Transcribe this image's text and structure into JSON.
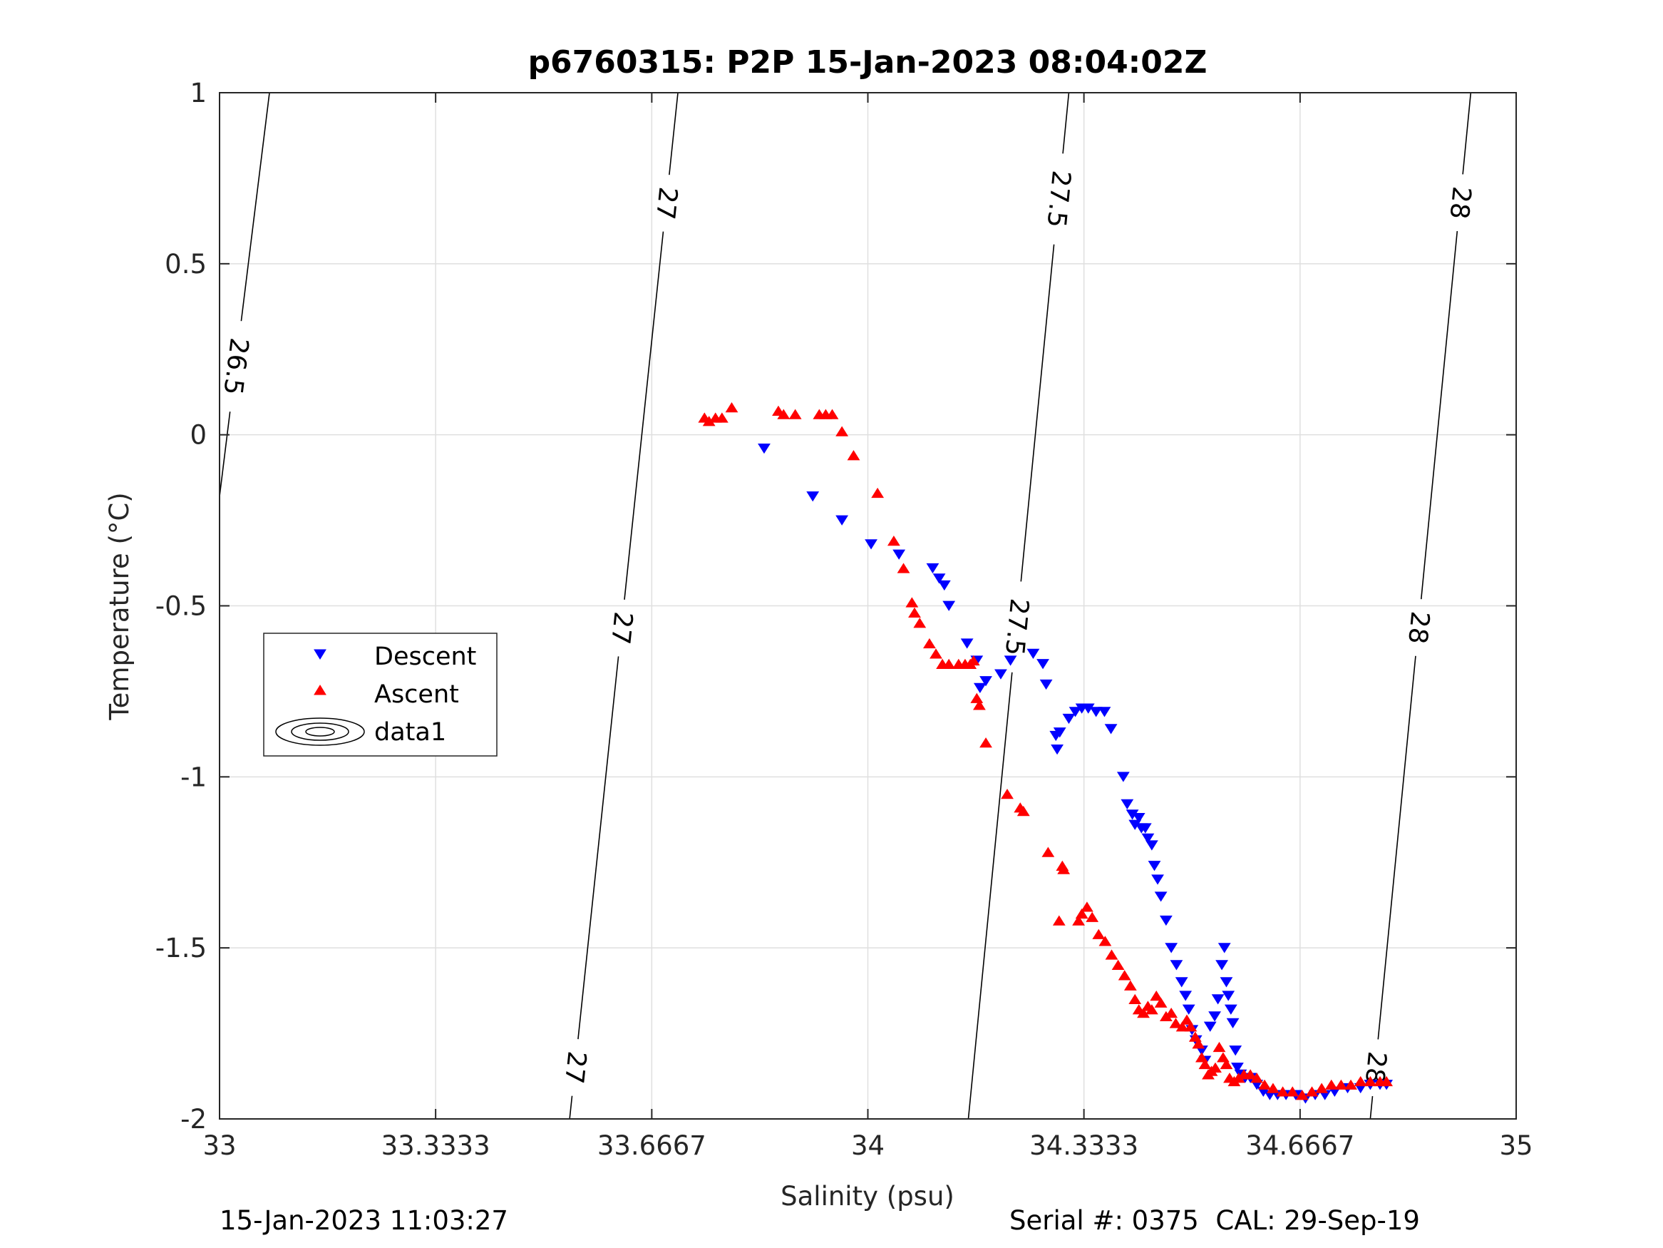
{
  "chart_data": {
    "type": "scatter",
    "title": "p6760315: P2P 15-Jan-2023 08:04:02Z",
    "xlabel": "Salinity (psu)",
    "ylabel": "Temperature (°C)",
    "xlim": [
      33,
      35
    ],
    "ylim": [
      -2,
      1
    ],
    "x_ticks": [
      33,
      33.3333,
      33.6667,
      34,
      34.3333,
      34.6667,
      35
    ],
    "x_tick_labels": [
      "33",
      "33.3333",
      "33.6667",
      "34",
      "34.3333",
      "34.6667",
      "35"
    ],
    "y_ticks": [
      -2,
      -1.5,
      -1,
      -0.5,
      0,
      0.5,
      1
    ],
    "y_tick_labels": [
      "-2",
      "-1.5",
      "-1",
      "-0.5",
      "0",
      "0.5",
      "1"
    ],
    "grid": true,
    "legend_position": "left",
    "legend": [
      "Descent",
      "Ascent",
      "data1"
    ],
    "series": [
      {
        "name": "Descent",
        "marker": "triangle-down",
        "color": "#0000ff",
        "points": [
          [
            33.84,
            -0.04
          ],
          [
            33.915,
            -0.18
          ],
          [
            33.96,
            -0.25
          ],
          [
            34.005,
            -0.32
          ],
          [
            34.048,
            -0.35
          ],
          [
            34.1,
            -0.39
          ],
          [
            34.11,
            -0.42
          ],
          [
            34.118,
            -0.44
          ],
          [
            34.125,
            -0.5
          ],
          [
            34.153,
            -0.61
          ],
          [
            34.168,
            -0.66
          ],
          [
            34.173,
            -0.74
          ],
          [
            34.182,
            -0.72
          ],
          [
            34.205,
            -0.7
          ],
          [
            34.22,
            -0.66
          ],
          [
            34.255,
            -0.64
          ],
          [
            34.27,
            -0.67
          ],
          [
            34.275,
            -0.73
          ],
          [
            34.29,
            -0.88
          ],
          [
            34.292,
            -0.92
          ],
          [
            34.296,
            -0.87
          ],
          [
            34.31,
            -0.83
          ],
          [
            34.32,
            -0.81
          ],
          [
            34.33,
            -0.8
          ],
          [
            34.34,
            -0.8
          ],
          [
            34.352,
            -0.81
          ],
          [
            34.365,
            -0.81
          ],
          [
            34.375,
            -0.86
          ],
          [
            34.394,
            -1.0
          ],
          [
            34.4,
            -1.08
          ],
          [
            34.408,
            -1.11
          ],
          [
            34.412,
            -1.14
          ],
          [
            34.418,
            -1.12
          ],
          [
            34.422,
            -1.15
          ],
          [
            34.428,
            -1.15
          ],
          [
            34.432,
            -1.18
          ],
          [
            34.438,
            -1.2
          ],
          [
            34.442,
            -1.26
          ],
          [
            34.447,
            -1.3
          ],
          [
            34.452,
            -1.35
          ],
          [
            34.46,
            -1.42
          ],
          [
            34.468,
            -1.5
          ],
          [
            34.476,
            -1.55
          ],
          [
            34.484,
            -1.6
          ],
          [
            34.49,
            -1.64
          ],
          [
            34.495,
            -1.68
          ],
          [
            34.5,
            -1.74
          ],
          [
            34.506,
            -1.77
          ],
          [
            34.515,
            -1.8
          ],
          [
            34.52,
            -1.83
          ],
          [
            34.528,
            -1.73
          ],
          [
            34.535,
            -1.7
          ],
          [
            34.54,
            -1.65
          ],
          [
            34.546,
            -1.55
          ],
          [
            34.55,
            -1.5
          ],
          [
            34.553,
            -1.6
          ],
          [
            34.556,
            -1.64
          ],
          [
            34.56,
            -1.68
          ],
          [
            34.563,
            -1.72
          ],
          [
            34.567,
            -1.8
          ],
          [
            34.57,
            -1.85
          ],
          [
            34.575,
            -1.87
          ],
          [
            34.582,
            -1.88
          ],
          [
            34.59,
            -1.88
          ],
          [
            34.6,
            -1.9
          ],
          [
            34.61,
            -1.92
          ],
          [
            34.62,
            -1.93
          ],
          [
            34.632,
            -1.93
          ],
          [
            34.645,
            -1.93
          ],
          [
            34.66,
            -1.93
          ],
          [
            34.675,
            -1.94
          ],
          [
            34.69,
            -1.93
          ],
          [
            34.705,
            -1.93
          ],
          [
            34.72,
            -1.92
          ],
          [
            34.74,
            -1.91
          ],
          [
            34.76,
            -1.91
          ],
          [
            34.775,
            -1.9
          ],
          [
            34.79,
            -1.9
          ],
          [
            34.8,
            -1.9
          ]
        ]
      },
      {
        "name": "Ascent",
        "marker": "triangle-up",
        "color": "#ff0000",
        "points": [
          [
            33.748,
            0.05
          ],
          [
            33.755,
            0.04
          ],
          [
            33.765,
            0.05
          ],
          [
            33.775,
            0.05
          ],
          [
            33.79,
            0.08
          ],
          [
            33.862,
            0.07
          ],
          [
            33.87,
            0.06
          ],
          [
            33.888,
            0.06
          ],
          [
            33.925,
            0.06
          ],
          [
            33.935,
            0.06
          ],
          [
            33.945,
            0.06
          ],
          [
            33.96,
            0.01
          ],
          [
            33.978,
            -0.06
          ],
          [
            34.015,
            -0.17
          ],
          [
            34.04,
            -0.31
          ],
          [
            34.055,
            -0.39
          ],
          [
            34.068,
            -0.49
          ],
          [
            34.072,
            -0.52
          ],
          [
            34.08,
            -0.55
          ],
          [
            34.095,
            -0.61
          ],
          [
            34.105,
            -0.64
          ],
          [
            34.115,
            -0.67
          ],
          [
            34.125,
            -0.67
          ],
          [
            34.14,
            -0.67
          ],
          [
            34.15,
            -0.67
          ],
          [
            34.158,
            -0.67
          ],
          [
            34.163,
            -0.66
          ],
          [
            34.168,
            -0.77
          ],
          [
            34.172,
            -0.79
          ],
          [
            34.182,
            -0.9
          ],
          [
            34.215,
            -1.05
          ],
          [
            34.235,
            -1.09
          ],
          [
            34.24,
            -1.1
          ],
          [
            34.278,
            -1.22
          ],
          [
            34.3,
            -1.26
          ],
          [
            34.302,
            -1.27
          ],
          [
            34.295,
            -1.42
          ],
          [
            34.325,
            -1.42
          ],
          [
            34.33,
            -1.4
          ],
          [
            34.338,
            -1.38
          ],
          [
            34.346,
            -1.41
          ],
          [
            34.356,
            -1.46
          ],
          [
            34.366,
            -1.48
          ],
          [
            34.376,
            -1.52
          ],
          [
            34.386,
            -1.55
          ],
          [
            34.396,
            -1.58
          ],
          [
            34.405,
            -1.61
          ],
          [
            34.412,
            -1.65
          ],
          [
            34.418,
            -1.68
          ],
          [
            34.425,
            -1.69
          ],
          [
            34.432,
            -1.67
          ],
          [
            34.438,
            -1.68
          ],
          [
            34.445,
            -1.64
          ],
          [
            34.452,
            -1.66
          ],
          [
            34.46,
            -1.7
          ],
          [
            34.468,
            -1.69
          ],
          [
            34.475,
            -1.72
          ],
          [
            34.485,
            -1.73
          ],
          [
            34.492,
            -1.71
          ],
          [
            34.498,
            -1.73
          ],
          [
            34.505,
            -1.76
          ],
          [
            34.51,
            -1.78
          ],
          [
            34.515,
            -1.82
          ],
          [
            34.52,
            -1.84
          ],
          [
            34.525,
            -1.87
          ],
          [
            34.53,
            -1.86
          ],
          [
            34.536,
            -1.85
          ],
          [
            34.542,
            -1.79
          ],
          [
            34.548,
            -1.82
          ],
          [
            34.553,
            -1.84
          ],
          [
            34.558,
            -1.88
          ],
          [
            34.565,
            -1.89
          ],
          [
            34.572,
            -1.88
          ],
          [
            34.58,
            -1.87
          ],
          [
            34.59,
            -1.87
          ],
          [
            34.6,
            -1.88
          ],
          [
            34.612,
            -1.9
          ],
          [
            34.625,
            -1.91
          ],
          [
            34.64,
            -1.92
          ],
          [
            34.655,
            -1.92
          ],
          [
            34.67,
            -1.93
          ],
          [
            34.685,
            -1.92
          ],
          [
            34.7,
            -1.91
          ],
          [
            34.715,
            -1.9
          ],
          [
            34.73,
            -1.9
          ],
          [
            34.745,
            -1.9
          ],
          [
            34.76,
            -1.89
          ],
          [
            34.775,
            -1.89
          ],
          [
            34.79,
            -1.89
          ],
          [
            34.8,
            -1.89
          ]
        ]
      }
    ],
    "contours": [
      {
        "level": "26.5",
        "line": [
          [
            33.0,
            -0.18
          ],
          [
            33.077,
            1.0
          ]
        ],
        "label_pos": [
          33.025,
          0.2
        ]
      },
      {
        "level": "27",
        "line": [
          [
            33.54,
            -2.0
          ],
          [
            33.707,
            1.0
          ]
        ],
        "label_pos": [
          33.55,
          -1.85
        ],
        "label_pos2": [
          33.595,
          -0.56
        ],
        "label_pos3": [
          33.674,
          0.68
        ]
      },
      {
        "level": "27.5",
        "line": [
          [
            34.155,
            -2.0
          ],
          [
            34.31,
            1.0
          ]
        ],
        "label_pos": [
          34.22,
          -0.56
        ],
        "label_pos3": [
          34.29,
          0.69
        ]
      },
      {
        "level": "28",
        "line": [
          [
            34.775,
            -2.0
          ],
          [
            34.93,
            1.0
          ]
        ],
        "label_pos": [
          34.78,
          -1.85
        ],
        "label_pos2": [
          34.83,
          -0.56
        ],
        "label_pos3": [
          34.905,
          0.68
        ]
      }
    ]
  },
  "legend_labels": {
    "descent": "Descent",
    "ascent": "Ascent",
    "data1": "data1"
  },
  "footer": {
    "left": "15-Jan-2023 11:03:27",
    "right": "Serial #: 0375  CAL: 29-Sep-19"
  }
}
